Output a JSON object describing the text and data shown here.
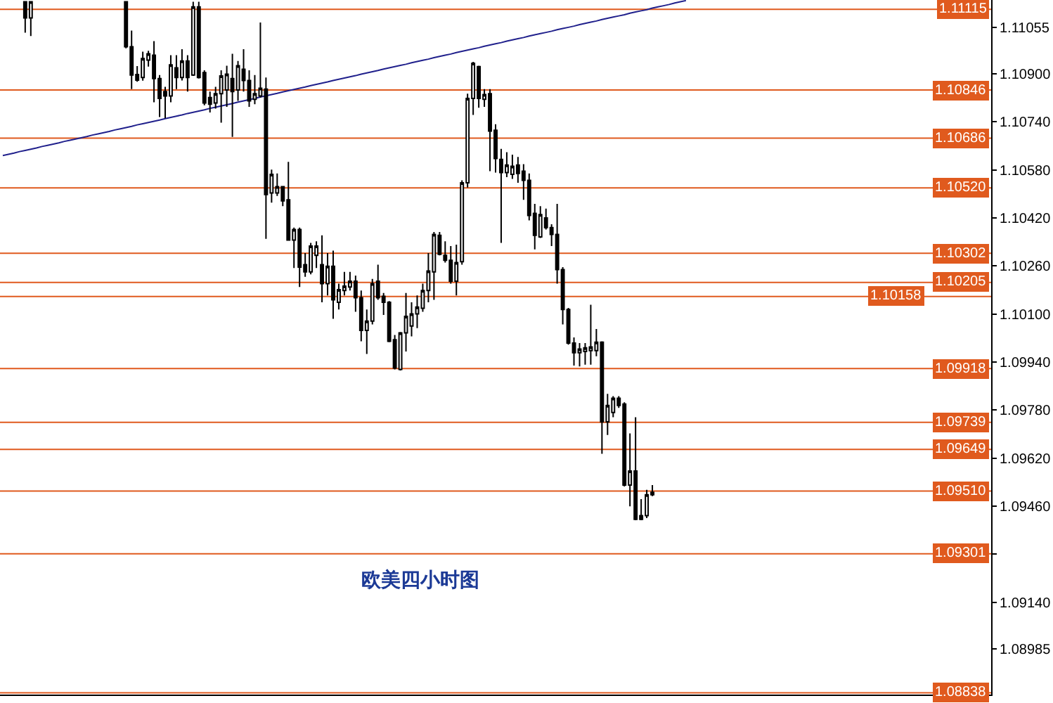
{
  "chart_data": {
    "type": "candlestick",
    "annotations": [
      "欧美四小时图"
    ],
    "categories": [
      null,
      null,
      null,
      null,
      null,
      null,
      null,
      null,
      null,
      null,
      null,
      null,
      null,
      null,
      null,
      null,
      null,
      null,
      null,
      null,
      null,
      null,
      null,
      null,
      null,
      null,
      null,
      null,
      null,
      null,
      null,
      null,
      null,
      null,
      null,
      null,
      null,
      null,
      null,
      null,
      null,
      null,
      null,
      null,
      null,
      null,
      null,
      null,
      null,
      null,
      null,
      null,
      null,
      null,
      null,
      null,
      null,
      null,
      null,
      null,
      null,
      null,
      null,
      null,
      null,
      null,
      null,
      null,
      null,
      null,
      null,
      null,
      null,
      null,
      null,
      null,
      null,
      null,
      null,
      null,
      null,
      null,
      null,
      null,
      null,
      null,
      null,
      null,
      null,
      null,
      null,
      null,
      null,
      null,
      null,
      null,
      null,
      null,
      null,
      null,
      null,
      null,
      null,
      null,
      null,
      null,
      null,
      null,
      null,
      null,
      null,
      null,
      null,
      null,
      null,
      null,
      null,
      null,
      null,
      null,
      null,
      null,
      null,
      null,
      null,
      null,
      null,
      null,
      null,
      null,
      null,
      null,
      null,
      null,
      null,
      null,
      null,
      null,
      null,
      null,
      null,
      null,
      null,
      null,
      null,
      null,
      null,
      null,
      null,
      null,
      null,
      null,
      null,
      null,
      null,
      null,
      null,
      null,
      null,
      null,
      null,
      null,
      null,
      null,
      null,
      null,
      null,
      null,
      null,
      null,
      null,
      null,
      null,
      null,
      null,
      null,
      null
    ],
    "series": [
      {
        "type": "line",
        "color": "#20208c",
        "values": [
          1.10628,
          1.10632,
          1.10636,
          1.10641,
          1.10645,
          1.10649,
          1.10653,
          1.10658,
          1.10662,
          1.10666,
          1.1067,
          1.10675,
          1.10679,
          1.10683,
          1.10687,
          1.10691,
          1.10696,
          1.107,
          1.10704,
          1.10708,
          1.10713,
          1.10717,
          1.10721,
          1.10725,
          1.1073,
          1.10734,
          1.10738,
          1.10742,
          1.10746,
          1.10751,
          1.10755,
          1.10759,
          1.10763,
          1.10768,
          1.10772,
          1.10776,
          1.1078,
          1.10785,
          1.10789,
          1.10793,
          1.10797,
          1.10801,
          1.10806,
          1.1081,
          1.10814,
          1.10818,
          1.10823,
          1.10827,
          1.10831,
          1.10835,
          1.1084,
          1.10844,
          1.10848,
          1.10852,
          1.10856,
          1.10861,
          1.10865,
          1.10869,
          1.10873,
          1.10878,
          1.10882,
          1.10886,
          1.1089,
          1.10894,
          1.10899,
          1.10903,
          1.10907,
          1.10911,
          1.10916,
          1.1092,
          1.10924,
          1.10928,
          1.10932,
          1.10937,
          1.10941,
          1.10945,
          1.10949,
          1.10954,
          1.10958,
          1.10962,
          1.10966,
          1.10971,
          1.10975,
          1.10979,
          1.10983,
          1.10987,
          1.10992,
          1.10996,
          1.11,
          1.11004,
          1.11009,
          1.11013,
          1.11017,
          1.11021,
          1.11026,
          1.1103,
          1.11034,
          1.11038,
          1.11042,
          1.11047,
          1.11051,
          1.11055,
          1.11059,
          1.11064,
          1.11068,
          1.11072,
          1.11076,
          1.11081,
          1.11085,
          1.11089,
          1.11093,
          1.11097,
          1.11102,
          1.11106,
          1.1111,
          1.11114,
          1.11119,
          1.11123,
          1.11127,
          1.11131,
          1.11136,
          1.1114,
          1.11144,
          null,
          null,
          null,
          null,
          null,
          null,
          null,
          null,
          null,
          null,
          null,
          null,
          null,
          null,
          null,
          null,
          null,
          null,
          null,
          null,
          null,
          null,
          null,
          null,
          null,
          null,
          null,
          null,
          null,
          null,
          null,
          null,
          null,
          null,
          null,
          null,
          null,
          null,
          null,
          null,
          null,
          null,
          null,
          null,
          null,
          null,
          null,
          null,
          null,
          null,
          null,
          null,
          null,
          null
        ]
      },
      {
        "color": "#000000",
        "ohlc": [
          null,
          null,
          null,
          null,
          [
            1.1114,
            1.1114,
            1.11037,
            1.11086
          ],
          [
            1.11086,
            1.1114,
            1.11026,
            1.1114
          ],
          null,
          null,
          null,
          null,
          null,
          null,
          null,
          null,
          null,
          null,
          null,
          null,
          null,
          null,
          null,
          null,
          [
            1.1114,
            1.1114,
            1.10985,
            1.1099
          ],
          [
            1.1099,
            1.11044,
            1.10849,
            1.10896
          ],
          [
            1.10898,
            1.10926,
            1.10874,
            1.10879
          ],
          [
            1.10888,
            1.10974,
            1.10877,
            1.10951
          ],
          [
            1.10946,
            1.10977,
            1.10924,
            1.10967
          ],
          [
            1.10962,
            1.11009,
            1.10805,
            1.10884
          ],
          [
            1.10884,
            1.10896,
            1.10756,
            1.10818
          ],
          [
            1.10841,
            1.10857,
            1.10752,
            1.10826
          ],
          [
            1.10826,
            1.10962,
            1.10805,
            1.1093
          ],
          [
            1.1092,
            1.10962,
            1.10849,
            1.10888
          ],
          [
            1.10888,
            1.10982,
            1.10878,
            1.10943
          ],
          [
            1.10943,
            1.10962,
            1.10841,
            1.10888
          ],
          [
            1.10896,
            1.1114,
            1.10893,
            1.11123
          ],
          [
            1.11123,
            1.1114,
            1.10884,
            1.10888
          ],
          [
            1.10904,
            1.10912,
            1.10795,
            1.10803
          ],
          [
            1.10821,
            1.10841,
            1.10771,
            1.10799
          ],
          [
            1.10803,
            1.10857,
            1.10784,
            1.10834
          ],
          [
            1.10834,
            1.10912,
            1.10737,
            1.10893
          ],
          [
            1.10846,
            1.10927,
            1.1079,
            1.10899
          ],
          [
            1.10884,
            1.10967,
            1.1069,
            1.10841
          ],
          [
            1.10846,
            1.10943,
            1.1081,
            1.10927
          ],
          [
            1.10915,
            1.10982,
            1.10841,
            1.10878
          ],
          [
            1.10878,
            1.10912,
            1.1079,
            1.1081
          ],
          [
            1.10815,
            1.10896,
            1.10799,
            1.10834
          ],
          [
            1.10826,
            1.11071,
            1.10821,
            1.10852
          ],
          [
            1.10849,
            1.10888,
            1.1035,
            1.10498
          ],
          [
            1.10503,
            1.10581,
            1.10471,
            1.10565
          ],
          [
            1.10503,
            1.10568,
            1.10493,
            1.10524
          ],
          [
            1.10524,
            1.10526,
            1.10459,
            1.10477
          ],
          [
            1.1048,
            1.10607,
            1.10345,
            1.10346
          ],
          [
            1.10346,
            1.10388,
            1.10253,
            1.10381
          ],
          [
            1.10381,
            1.10388,
            1.1019,
            1.10256
          ],
          [
            1.10264,
            1.10303,
            1.10224,
            1.1024
          ],
          [
            1.1024,
            1.10337,
            1.10232,
            1.10326
          ],
          [
            1.10295,
            1.10342,
            1.10253,
            1.10326
          ],
          [
            1.10264,
            1.10362,
            1.10139,
            1.10201
          ],
          [
            1.10201,
            1.10303,
            1.10162,
            1.10259
          ],
          [
            1.10259,
            1.10311,
            1.10084,
            1.10147
          ],
          [
            1.10139,
            1.10201,
            1.10115,
            1.10181
          ],
          [
            1.10178,
            1.1024,
            1.10162,
            1.10193
          ],
          [
            1.1019,
            1.1024,
            1.10178,
            1.10209
          ],
          [
            1.10209,
            1.10228,
            1.10107,
            1.10154
          ],
          [
            1.10154,
            1.10178,
            1.10009,
            1.10045
          ],
          [
            1.10045,
            1.10115,
            1.09967,
            1.10076
          ],
          [
            1.10076,
            1.10217,
            1.10065,
            1.10201
          ],
          [
            1.10209,
            1.10264,
            1.10147,
            1.10154
          ],
          [
            1.10159,
            1.1017,
            1.10097,
            1.10139
          ],
          [
            1.10139,
            1.10143,
            1.10006,
            1.10009
          ],
          [
            1.10014,
            1.1003,
            1.09915,
            1.0992
          ],
          [
            1.09915,
            1.1004,
            1.09912,
            1.10037
          ],
          [
            1.10037,
            1.1017,
            1.09975,
            1.10092
          ],
          [
            1.1006,
            1.10139,
            1.10025,
            1.101
          ],
          [
            1.101,
            1.10162,
            1.10053,
            1.10123
          ],
          [
            1.10119,
            1.10201,
            1.10107,
            1.10178
          ],
          [
            1.10178,
            1.10303,
            1.10139,
            1.10243
          ],
          [
            1.1024,
            1.10373,
            1.10147,
            1.10365
          ],
          [
            1.10362,
            1.10373,
            1.10295,
            1.10299
          ],
          [
            1.10295,
            1.10342,
            1.10271,
            1.10279
          ],
          [
            1.10279,
            1.10326,
            1.10201,
            1.10209
          ],
          [
            1.10209,
            1.10331,
            1.10162,
            1.10271
          ],
          [
            1.10274,
            1.10545,
            1.10264,
            1.10537
          ],
          [
            1.10537,
            1.10834,
            1.10521,
            1.10818
          ],
          [
            1.10818,
            1.1094,
            1.10763,
            1.10935
          ],
          [
            1.10924,
            1.10927,
            1.10787,
            1.10818
          ],
          [
            1.10815,
            1.10849,
            1.1079,
            1.10831
          ],
          [
            1.10834,
            1.10849,
            1.10576,
            1.10709
          ],
          [
            1.10712,
            1.10732,
            1.10571,
            1.10618
          ],
          [
            1.10615,
            1.1065,
            1.10337,
            1.10571
          ],
          [
            1.10571,
            1.10639,
            1.10556,
            1.10596
          ],
          [
            1.10565,
            1.10631,
            1.1055,
            1.10592
          ],
          [
            1.10596,
            1.10623,
            1.10537,
            1.10568
          ],
          [
            1.10576,
            1.10599,
            1.1048,
            1.10545
          ],
          [
            1.10545,
            1.10568,
            1.10412,
            1.10428
          ],
          [
            1.10435,
            1.10467,
            1.10315,
            1.10362
          ],
          [
            1.10357,
            1.10459,
            1.10353,
            1.10431
          ],
          [
            1.1042,
            1.10451,
            1.10381,
            1.10388
          ],
          [
            1.10388,
            1.10399,
            1.10326,
            1.10365
          ],
          [
            1.10365,
            1.10467,
            1.10201,
            1.10248
          ],
          [
            1.10248,
            1.10256,
            1.10065,
            1.10115
          ],
          [
            1.10115,
            1.1012,
            1.09998,
            1.10003
          ],
          [
            1.10003,
            1.10022,
            1.09928,
            1.09971
          ],
          [
            1.09971,
            1.10003,
            1.09925,
            1.09983
          ],
          [
            1.09975,
            1.10003,
            1.09931,
            1.09987
          ],
          [
            1.09978,
            1.10131,
            1.09931,
            1.0999
          ],
          [
            1.09978,
            1.1005,
            1.09959,
            1.10006
          ],
          [
            1.10006,
            1.10009,
            1.09634,
            1.09741
          ],
          [
            1.09741,
            1.09834,
            1.09697,
            1.09795
          ],
          [
            1.09772,
            1.09826,
            1.09756,
            1.09819
          ],
          [
            1.09819,
            1.09826,
            1.09787,
            1.09795
          ],
          [
            1.098,
            1.09806,
            1.09525,
            1.0953
          ],
          [
            1.0953,
            1.09702,
            1.09459,
            1.09577
          ],
          [
            1.09577,
            1.09756,
            1.09413,
            1.09416
          ],
          [
            1.09428,
            1.09483,
            1.09413,
            1.09416
          ],
          [
            1.09428,
            1.09514,
            1.0942,
            1.09498
          ],
          [
            1.09498,
            1.0953,
            1.09493,
            1.09506
          ],
          null,
          null,
          null,
          null,
          null,
          null,
          null,
          null,
          null,
          null,
          null,
          null,
          null,
          null,
          null,
          null,
          null,
          null,
          null,
          null,
          null,
          null,
          null,
          null,
          null,
          null,
          null,
          null,
          null,
          null,
          null,
          null,
          null,
          null,
          null,
          null,
          null,
          null,
          null,
          null,
          null,
          null,
          null,
          null,
          null,
          null,
          null,
          null,
          null,
          null,
          null,
          null,
          null,
          null,
          null,
          null,
          null,
          null,
          null,
          null
        ]
      }
    ],
    "ylim": [
      1.08832,
      1.11146
    ],
    "yticks": [
      {
        "value": 1.11055,
        "label": "1.11055"
      },
      {
        "value": 1.109,
        "label": "1.10900"
      },
      {
        "value": 1.1074,
        "label": "1.10740"
      },
      {
        "value": 1.1058,
        "label": "1.10580"
      },
      {
        "value": 1.1042,
        "label": "1.10420"
      },
      {
        "value": 1.1026,
        "label": "1.10260"
      },
      {
        "value": 1.101,
        "label": "1.10100"
      },
      {
        "value": 1.0994,
        "label": "1.09940"
      },
      {
        "value": 1.0978,
        "label": "1.09780"
      },
      {
        "value": 1.0962,
        "label": "1.09620"
      },
      {
        "value": 1.0946,
        "label": "1.09460"
      },
      {
        "value": 1.093,
        "label": null
      },
      {
        "value": 1.0914,
        "label": "1.09140"
      },
      {
        "value": 1.08985,
        "label": "1.08985"
      }
    ],
    "tick_labels": "y",
    "ref_lines": [
      {
        "axis": "y",
        "value": 1.11115,
        "label": "1.11115",
        "color": "#e05a1e"
      },
      {
        "axis": "y",
        "value": 1.10846,
        "label": "1.10846",
        "color": "#e05a1e"
      },
      {
        "axis": "y",
        "value": 1.10686,
        "label": "1.10686",
        "color": "#e05a1e"
      },
      {
        "axis": "y",
        "value": 1.1052,
        "label": "1.10520",
        "color": "#e05a1e"
      },
      {
        "axis": "y",
        "value": 1.10302,
        "label": "1.10302",
        "color": "#e05a1e"
      },
      {
        "axis": "y",
        "value": 1.10205,
        "label": "1.10205",
        "color": "#e05a1e"
      },
      {
        "axis": "y",
        "value": 1.10158,
        "label": "1.10158",
        "color": "#e05a1e"
      },
      {
        "axis": "y",
        "value": 1.09918,
        "label": "1.09918",
        "color": "#e05a1e"
      },
      {
        "axis": "y",
        "value": 1.09739,
        "label": "1.09739",
        "color": "#e05a1e"
      },
      {
        "axis": "y",
        "value": 1.09649,
        "label": "1.09649",
        "color": "#e05a1e"
      },
      {
        "axis": "y",
        "value": 1.0951,
        "label": "1.09510",
        "color": "#e05a1e"
      },
      {
        "axis": "y",
        "value": 1.09301,
        "label": "1.09301",
        "color": "#e05a1e"
      },
      {
        "axis": "y",
        "value": 1.08838,
        "label": "1.08838",
        "color": "#e05a1e"
      }
    ]
  }
}
